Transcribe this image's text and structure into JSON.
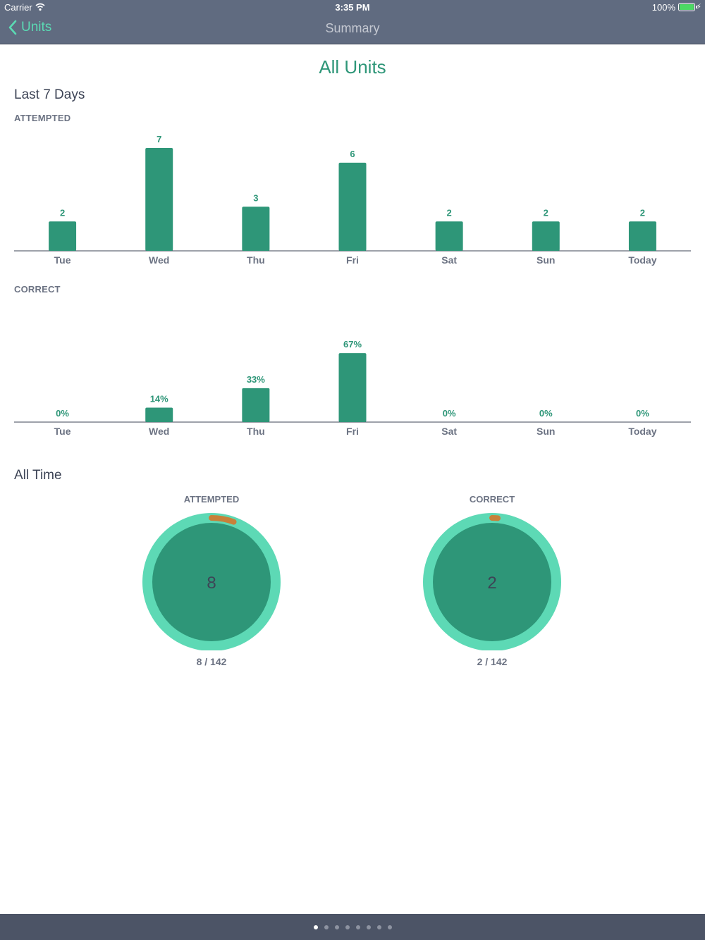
{
  "status_bar": {
    "carrier": "Carrier",
    "time": "3:35 PM",
    "battery": "100%"
  },
  "nav": {
    "back_label": "Units",
    "title": "Summary"
  },
  "page": {
    "title": "All Units"
  },
  "last7": {
    "heading": "Last 7 Days",
    "attempted_label": "ATTEMPTED",
    "correct_label": "CORRECT"
  },
  "chart_data": [
    {
      "type": "bar",
      "title": "ATTEMPTED",
      "categories": [
        "Tue",
        "Wed",
        "Thu",
        "Fri",
        "Sat",
        "Sun",
        "Today"
      ],
      "values": [
        2,
        7,
        3,
        6,
        2,
        2,
        2
      ],
      "data_labels": [
        "2",
        "7",
        "3",
        "6",
        "2",
        "2",
        "2"
      ],
      "ylim": [
        0,
        7
      ],
      "bar_color": "#2e9678"
    },
    {
      "type": "bar",
      "title": "CORRECT",
      "categories": [
        "Tue",
        "Wed",
        "Thu",
        "Fri",
        "Sat",
        "Sun",
        "Today"
      ],
      "values": [
        0,
        14,
        33,
        67,
        0,
        0,
        0
      ],
      "data_labels": [
        "0%",
        "14%",
        "33%",
        "67%",
        "0%",
        "0%",
        "0%"
      ],
      "ylim": [
        0,
        100
      ],
      "bar_color": "#2e9678"
    }
  ],
  "all_time": {
    "heading": "All Time",
    "attempted": {
      "label": "ATTEMPTED",
      "value": "8",
      "fraction": "8 / 142",
      "done": 8,
      "total": 142
    },
    "correct": {
      "label": "CORRECT",
      "value": "2",
      "fraction": "2 / 142",
      "done": 2,
      "total": 142
    }
  },
  "colors": {
    "bar": "#2e9678",
    "ring": "#5dd9b5",
    "progress": "#c7813a",
    "title": "#2e9678",
    "nav": "#606b80",
    "footer": "#4c5466"
  },
  "pager": {
    "count": 8,
    "active": 0
  }
}
